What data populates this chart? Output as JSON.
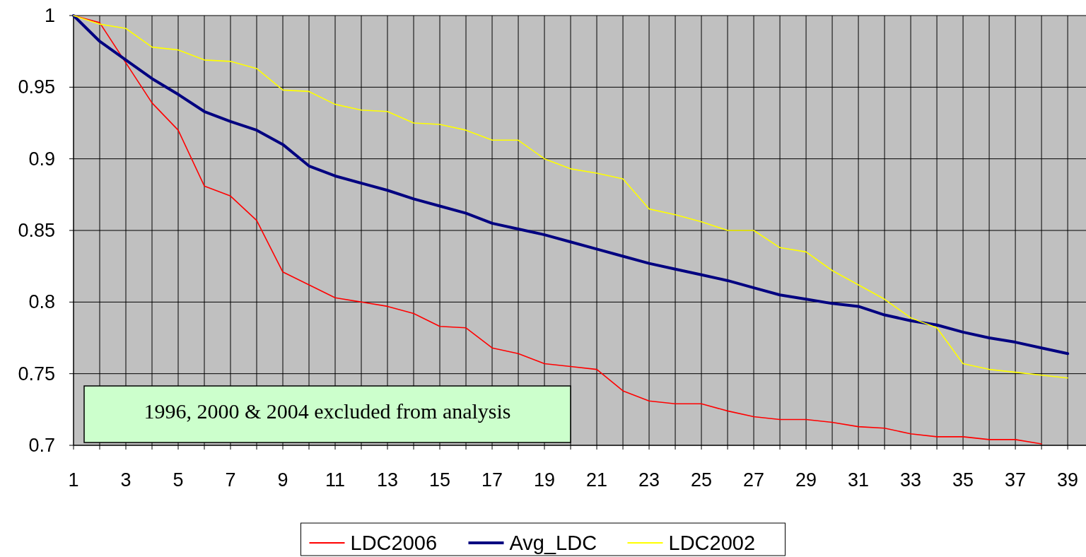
{
  "chart_data": {
    "type": "line",
    "x": [
      1,
      2,
      3,
      4,
      5,
      6,
      7,
      8,
      9,
      10,
      11,
      12,
      13,
      14,
      15,
      16,
      17,
      18,
      19,
      20,
      21,
      22,
      23,
      24,
      25,
      26,
      27,
      28,
      29,
      30,
      31,
      32,
      33,
      34,
      35,
      36,
      37,
      38,
      39
    ],
    "series": [
      {
        "name": "LDC2006",
        "color": "#ff0000",
        "values": [
          1,
          0.995,
          0.967,
          0.939,
          0.92,
          0.881,
          0.874,
          0.857,
          0.821,
          0.812,
          0.803,
          0.8,
          0.797,
          0.792,
          0.783,
          0.782,
          0.768,
          0.764,
          0.757,
          0.755,
          0.753,
          0.738,
          0.731,
          0.729,
          0.729,
          0.724,
          0.72,
          0.718,
          0.718,
          0.716,
          0.713,
          0.712,
          0.708,
          0.706,
          0.706,
          0.704,
          0.704,
          0.701,
          null
        ]
      },
      {
        "name": "Avg_LDC",
        "color": "#000080",
        "values": [
          1,
          0.982,
          0.969,
          0.956,
          0.945,
          0.933,
          0.926,
          0.92,
          0.91,
          0.895,
          0.888,
          0.883,
          0.878,
          0.872,
          0.867,
          0.862,
          0.855,
          0.851,
          0.847,
          0.842,
          0.837,
          0.832,
          0.827,
          0.823,
          0.819,
          0.815,
          0.81,
          0.805,
          0.802,
          0.799,
          0.797,
          0.791,
          0.787,
          0.784,
          0.779,
          0.775,
          0.772,
          0.768,
          0.764
        ]
      },
      {
        "name": "LDC2002",
        "color": "#ffff00",
        "values": [
          1,
          0.994,
          0.991,
          0.978,
          0.976,
          0.969,
          0.968,
          0.963,
          0.948,
          0.947,
          0.938,
          0.934,
          0.933,
          0.925,
          0.924,
          0.92,
          0.913,
          0.913,
          0.9,
          0.893,
          0.89,
          0.886,
          0.865,
          0.861,
          0.856,
          0.85,
          0.85,
          0.838,
          0.835,
          0.822,
          0.812,
          0.802,
          0.789,
          0.782,
          0.757,
          0.753,
          0.751,
          0.749,
          0.747
        ]
      }
    ],
    "xlim": [
      1,
      39.7
    ],
    "xticks": [
      1,
      {
        "value": 2,
        "label": null
      },
      3,
      {
        "value": 4,
        "label": null
      },
      5,
      {
        "value": 6,
        "label": null
      },
      7,
      {
        "value": 8,
        "label": null
      },
      9,
      {
        "value": 10,
        "label": null
      },
      11,
      {
        "value": 12,
        "label": null
      },
      13,
      {
        "value": 14,
        "label": null
      },
      15,
      {
        "value": 16,
        "label": null
      },
      17,
      {
        "value": 18,
        "label": null
      },
      19,
      {
        "value": 20,
        "label": null
      },
      21,
      {
        "value": 22,
        "label": null
      },
      23,
      {
        "value": 24,
        "label": null
      },
      25,
      {
        "value": 26,
        "label": null
      },
      27,
      {
        "value": 28,
        "label": null
      },
      29,
      {
        "value": 30,
        "label": null
      },
      31,
      {
        "value": 32,
        "label": null
      },
      33,
      {
        "value": 34,
        "label": null
      },
      35,
      {
        "value": 36,
        "label": null
      },
      37,
      {
        "value": 38,
        "label": null
      },
      39
    ],
    "ylim": [
      0.7,
      1
    ],
    "yticks": [
      0.7,
      0.75,
      0.8,
      0.85,
      0.9,
      0.95,
      1
    ],
    "grid": true,
    "legend": "bottom",
    "annotations": [
      "1996, 2000 & 2004 excluded from analysis"
    ]
  }
}
